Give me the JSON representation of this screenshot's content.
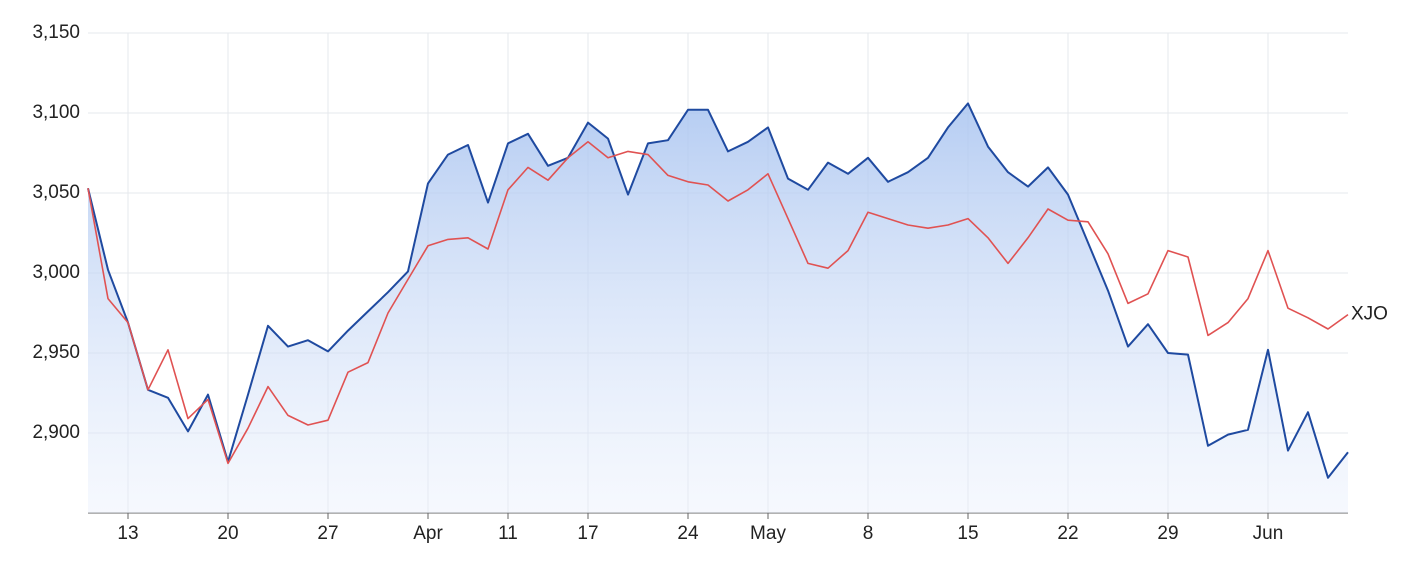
{
  "chart_data": {
    "type": "line",
    "categories": [
      null,
      null,
      "13",
      null,
      null,
      null,
      null,
      "20",
      null,
      null,
      null,
      null,
      "27",
      null,
      null,
      null,
      null,
      "Apr",
      null,
      null,
      null,
      "11",
      null,
      null,
      null,
      "17",
      null,
      null,
      null,
      null,
      "24",
      null,
      null,
      null,
      "May",
      null,
      null,
      null,
      null,
      "8",
      null,
      null,
      null,
      null,
      "15",
      null,
      null,
      null,
      null,
      "22",
      null,
      null,
      null,
      null,
      "29",
      null,
      null,
      null,
      null,
      "Jun",
      null,
      null,
      null,
      null
    ],
    "series": [
      {
        "color": "#1f4aa0",
        "area": true,
        "values": [
          3053,
          3002,
          2969,
          2927,
          2922,
          2901,
          2924,
          2882,
          2924,
          2967,
          2954,
          2958,
          2951,
          2964,
          2976,
          2988,
          3001,
          3056,
          3074,
          3080,
          3044,
          3081,
          3087,
          3067,
          3072,
          3094,
          3084,
          3049,
          3081,
          3083,
          3102,
          3102,
          3076,
          3082,
          3091,
          3059,
          3052,
          3069,
          3062,
          3072,
          3057,
          3063,
          3072,
          3091,
          3106,
          3079,
          3063,
          3054,
          3066,
          3049,
          3019,
          2989,
          2954,
          2968,
          2950,
          2949,
          2892,
          2899,
          2902,
          2952,
          2889,
          2913,
          2872,
          2888
        ]
      },
      {
        "name": "XJO",
        "color": "#e05252",
        "values": [
          3053,
          2984,
          2969,
          2927,
          2952,
          2909,
          2921,
          2881,
          2903,
          2929,
          2911,
          2905,
          2908,
          2938,
          2944,
          2975,
          2996,
          3017,
          3021,
          3022,
          3015,
          3052,
          3066,
          3058,
          3072,
          3082,
          3072,
          3076,
          3074,
          3061,
          3057,
          3055,
          3045,
          3052,
          3062,
          3034,
          3006,
          3003,
          3014,
          3038,
          3034,
          3030,
          3028,
          3030,
          3034,
          3022,
          3006,
          3022,
          3040,
          3033,
          3032,
          3012,
          2981,
          2987,
          3014,
          3010,
          2961,
          2969,
          2984,
          3014,
          2978,
          2972,
          2965,
          2974
        ]
      }
    ],
    "ylim": [
      2850,
      3150
    ],
    "yticks": [
      {
        "value": 2900,
        "label": "2,900"
      },
      {
        "value": 2950,
        "label": "2,950"
      },
      {
        "value": 3000,
        "label": "3,000"
      },
      {
        "value": 3050,
        "label": "3,050"
      },
      {
        "value": 3100,
        "label": "3,100"
      },
      {
        "value": 3150,
        "label": "3,150"
      }
    ],
    "grid": true
  }
}
